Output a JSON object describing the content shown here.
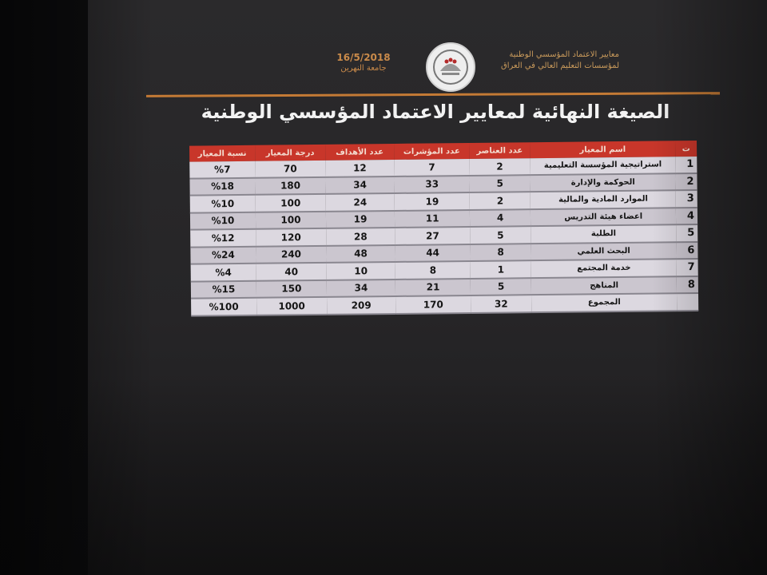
{
  "header": {
    "org_line1": "معايير الاعتماد المؤسسي الوطنية",
    "org_line2": "لمؤسسات التعليم العالي في العراق",
    "date": "16/5/2018",
    "university": "جامعة النهرين",
    "logo": "university-seal"
  },
  "title": "الصيغة النهائية لمعايير الاعتماد المؤسسي الوطنية",
  "colors": {
    "header_red": "#c8362a",
    "rule_orange": "#c47a35"
  },
  "table": {
    "columns": [
      "ت",
      "اسم المعيار",
      "عدد العناصر",
      "عدد المؤشرات",
      "عدد الأهداف",
      "درجة المعيار",
      "نسبة المعيار"
    ],
    "rows": [
      {
        "n": "1",
        "name": "استراتيجية المؤسسة التعليمية",
        "elements": "2",
        "indicators": "7",
        "goals": "12",
        "score": "70",
        "ratio": "%7"
      },
      {
        "n": "2",
        "name": "الحوكمة والإدارة",
        "elements": "5",
        "indicators": "33",
        "goals": "34",
        "score": "180",
        "ratio": "%18"
      },
      {
        "n": "3",
        "name": "الموارد المادية والمالية",
        "elements": "2",
        "indicators": "19",
        "goals": "24",
        "score": "100",
        "ratio": "%10"
      },
      {
        "n": "4",
        "name": "اعضاء هيئة التدريس",
        "elements": "4",
        "indicators": "11",
        "goals": "19",
        "score": "100",
        "ratio": "%10"
      },
      {
        "n": "5",
        "name": "الطلبة",
        "elements": "5",
        "indicators": "27",
        "goals": "28",
        "score": "120",
        "ratio": "%12"
      },
      {
        "n": "6",
        "name": "البحث العلمي",
        "elements": "8",
        "indicators": "44",
        "goals": "48",
        "score": "240",
        "ratio": "%24"
      },
      {
        "n": "7",
        "name": "خدمة المجتمع",
        "elements": "1",
        "indicators": "8",
        "goals": "10",
        "score": "40",
        "ratio": "%4"
      },
      {
        "n": "8",
        "name": "المناهج",
        "elements": "5",
        "indicators": "21",
        "goals": "34",
        "score": "150",
        "ratio": "%15"
      },
      {
        "n": "",
        "name": "المجموع",
        "elements": "32",
        "indicators": "170",
        "goals": "209",
        "score": "1000",
        "ratio": "%100"
      }
    ]
  }
}
